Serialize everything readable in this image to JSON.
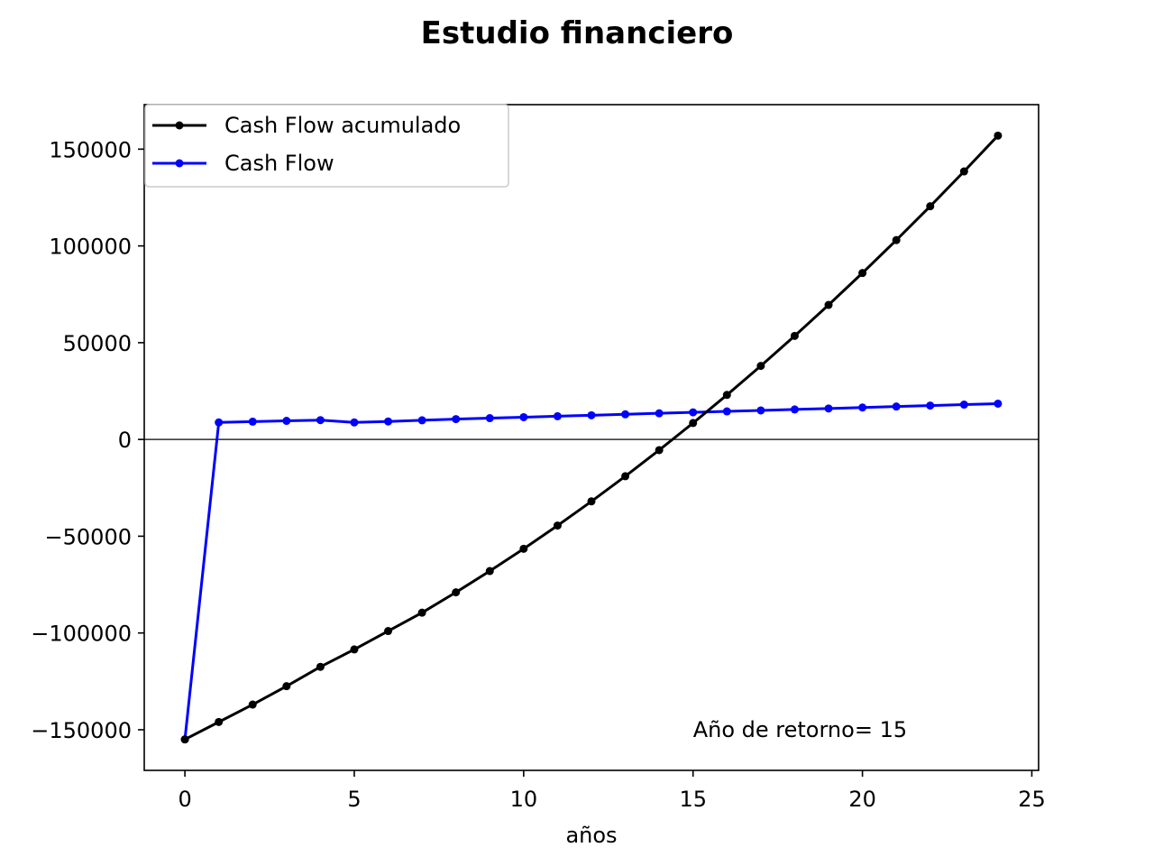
{
  "chart_data": {
    "type": "line",
    "title": "Estudio financiero",
    "xlabel": "años",
    "ylabel": "",
    "xlim": [
      -1.2,
      25.2
    ],
    "ylim": [
      -171000,
      173000
    ],
    "xticks": [
      0,
      5,
      10,
      15,
      20,
      25
    ],
    "yticks": [
      -150000,
      -100000,
      -50000,
      0,
      50000,
      100000,
      150000
    ],
    "xtick_labels": [
      "0",
      "5",
      "10",
      "15",
      "20",
      "25"
    ],
    "ytick_labels": [
      "−150000",
      "−100000",
      "−50000",
      "0",
      "50000",
      "100000",
      "150000"
    ],
    "grid": false,
    "zero_line": true,
    "legend_position": "upper-left",
    "annotation": {
      "text": "Año de retorno= 15",
      "x": 15,
      "y": -150000
    },
    "x": [
      0,
      1,
      2,
      3,
      4,
      5,
      6,
      7,
      8,
      9,
      10,
      11,
      12,
      13,
      14,
      15,
      16,
      17,
      18,
      19,
      20,
      21,
      22,
      23,
      24
    ],
    "series": [
      {
        "name": "Cash Flow acumulado",
        "color": "#000000",
        "values": [
          -155000,
          -146000,
          -137000,
          -127500,
          -117500,
          -108500,
          -99000,
          -89500,
          -79000,
          -68000,
          -56500,
          -44500,
          -32000,
          -19000,
          -5500,
          8500,
          23000,
          38000,
          53500,
          69500,
          86000,
          103000,
          120500,
          138500,
          157000
        ]
      },
      {
        "name": "Cash Flow",
        "color": "#0000ff",
        "values": [
          -155000,
          8800,
          9200,
          9600,
          10000,
          8800,
          9300,
          9900,
          10500,
          11000,
          11500,
          12000,
          12500,
          13000,
          13500,
          14000,
          14500,
          15000,
          15500,
          16000,
          16500,
          17000,
          17500,
          18000,
          18500
        ]
      }
    ]
  }
}
